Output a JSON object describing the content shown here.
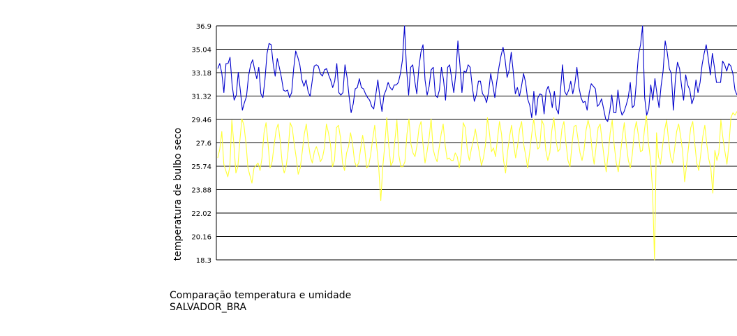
{
  "caption": {
    "line1": "Comparação temperatura e umidade",
    "line2": "SALVADOR_BRA"
  },
  "chart_data": {
    "type": "line",
    "title": "",
    "ylabel": "temperatura de bulbo seco",
    "xlabel": "",
    "ylim": [
      18.3,
      36.9
    ],
    "yticks": [
      "36.9",
      "35.04",
      "33.18",
      "31.32",
      "29.46",
      "27.6",
      "25.74",
      "23.88",
      "22.02",
      "20.16",
      "18.3"
    ],
    "grid": true,
    "legend": "none",
    "colors": {
      "series_blue": "#0000cc",
      "series_yellow": "#ffff33",
      "grid": "#000000"
    },
    "series": [
      {
        "values": [
          33.5,
          33.9,
          33.1,
          31.6,
          33.9,
          33.9,
          34.4,
          32.2,
          31.0,
          31.4,
          33.2,
          31.8,
          30.2,
          30.8,
          31.3,
          32.9,
          33.8,
          34.2,
          33.4,
          32.7,
          33.6,
          31.5,
          31.2,
          32.6,
          34.7,
          35.5,
          35.4,
          33.9,
          32.9,
          34.3,
          33.6,
          32.8,
          31.8,
          31.7,
          31.8,
          31.2,
          31.6,
          33.5,
          34.9,
          34.4,
          33.8,
          32.6,
          32.1,
          32.6,
          31.7,
          31.3,
          32.5,
          33.7,
          33.8,
          33.7,
          33.1,
          32.9,
          33.4,
          33.5,
          33.0,
          32.6,
          32.0,
          32.5,
          33.9,
          31.6,
          31.4,
          31.6,
          33.8,
          32.8,
          31.3,
          30.0,
          30.7,
          31.9,
          32.0,
          32.7,
          32.0,
          31.9,
          31.5,
          31.2,
          31.0,
          30.5,
          30.3,
          31.4,
          32.6,
          31.2,
          30.1,
          31.4,
          31.8,
          32.4,
          32.0,
          31.8,
          32.2,
          32.2,
          32.4,
          33.1,
          34.2,
          36.9,
          33.5,
          31.4,
          33.6,
          33.8,
          32.5,
          31.5,
          33.6,
          34.8,
          35.4,
          32.6,
          31.4,
          32.1,
          33.4,
          33.6,
          31.4,
          31.2,
          31.8,
          33.6,
          32.6,
          31.0,
          33.6,
          33.8,
          32.7,
          31.6,
          33.1,
          35.7,
          33.8,
          31.6,
          33.3,
          33.2,
          33.8,
          33.6,
          32.1,
          30.9,
          31.4,
          32.5,
          32.5,
          31.5,
          31.3,
          30.8,
          31.7,
          33.1,
          32.2,
          31.2,
          32.5,
          33.6,
          34.5,
          35.2,
          34.2,
          32.8,
          33.4,
          34.8,
          33.2,
          31.5,
          32.0,
          31.3,
          32.1,
          33.1,
          32.4,
          31.1,
          30.6,
          29.6,
          31.7,
          29.8,
          31.2,
          31.5,
          31.4,
          29.9,
          31.7,
          32.1,
          31.5,
          30.4,
          31.7,
          30.3,
          29.9,
          31.8,
          33.8,
          31.7,
          31.4,
          31.8,
          32.5,
          31.5,
          32.3,
          33.6,
          32.0,
          31.2,
          30.8,
          30.9,
          30.2,
          31.6,
          32.3,
          32.1,
          31.9,
          30.5,
          30.7,
          31.1,
          30.3,
          29.5,
          29.3,
          30.1,
          31.4,
          30.0,
          30.0,
          31.8,
          30.4,
          29.8,
          30.1,
          30.6,
          31.2,
          32.4,
          30.4,
          30.6,
          32.5,
          34.6,
          35.4,
          36.9,
          31.2,
          29.8,
          30.3,
          32.2,
          31.0,
          32.7,
          31.5,
          30.4,
          32.1,
          33.3,
          35.7,
          34.8,
          33.5,
          33.1,
          30.2,
          32.7,
          34.0,
          33.5,
          32.1,
          31.0,
          33.0,
          32.2,
          31.8,
          30.7,
          31.2,
          32.6,
          31.6,
          32.4,
          33.8,
          34.7,
          35.4,
          34.3,
          33.0,
          34.7,
          33.6,
          32.4,
          32.4,
          32.4,
          34.1,
          33.8,
          33.3,
          33.9,
          33.7,
          33.1,
          31.8,
          31.4
        ],
        "color": "#0000cc"
      },
      {
        "values": [
          26.4,
          27.1,
          28.5,
          25.9,
          25.4,
          24.9,
          25.7,
          29.4,
          27.5,
          25.2,
          25.7,
          27.8,
          29.5,
          29.0,
          27.6,
          25.6,
          25.0,
          24.4,
          25.6,
          25.8,
          26.0,
          25.4,
          26.4,
          28.4,
          29.2,
          27.5,
          25.6,
          26.1,
          27.4,
          28.6,
          29.1,
          27.8,
          26.0,
          25.2,
          25.7,
          27.0,
          29.2,
          28.8,
          27.5,
          26.4,
          25.1,
          25.6,
          26.9,
          28.3,
          29.1,
          27.6,
          26.5,
          26.0,
          26.9,
          27.3,
          26.8,
          26.1,
          26.4,
          27.2,
          29.1,
          28.4,
          27.5,
          25.7,
          26.2,
          28.8,
          29.0,
          28.0,
          26.0,
          25.4,
          26.8,
          27.3,
          28.4,
          27.5,
          26.1,
          25.7,
          26.0,
          27.1,
          28.2,
          27.2,
          25.6,
          25.8,
          26.7,
          27.9,
          29.0,
          27.3,
          25.6,
          23.0,
          25.7,
          27.4,
          29.6,
          27.3,
          25.8,
          26.1,
          27.8,
          29.4,
          26.6,
          25.7,
          25.7,
          26.1,
          28.3,
          29.5,
          27.5,
          26.8,
          26.5,
          27.4,
          28.8,
          29.3,
          27.5,
          26.0,
          26.9,
          28.0,
          29.5,
          27.1,
          26.5,
          26.1,
          27.2,
          28.3,
          29.1,
          27.4,
          26.3,
          26.4,
          26.2,
          26.2,
          26.8,
          26.5,
          25.6,
          26.7,
          29.2,
          28.8,
          27.0,
          26.2,
          27.1,
          27.8,
          28.7,
          27.7,
          26.8,
          25.8,
          26.4,
          27.4,
          29.6,
          28.4,
          26.9,
          27.2,
          26.5,
          27.9,
          29.3,
          28.3,
          26.2,
          25.2,
          26.9,
          28.1,
          29.0,
          27.5,
          26.4,
          27.4,
          28.7,
          29.3,
          27.5,
          26.6,
          25.6,
          26.9,
          28.3,
          29.5,
          28.2,
          27.1,
          27.3,
          29.4,
          29.0,
          27.0,
          26.2,
          26.8,
          28.6,
          29.6,
          27.9,
          26.9,
          27.1,
          28.7,
          29.3,
          27.6,
          26.2,
          25.7,
          27.4,
          28.9,
          29.0,
          27.9,
          26.8,
          26.2,
          27.0,
          28.6,
          29.4,
          28.7,
          27.0,
          25.9,
          27.3,
          28.8,
          29.1,
          27.7,
          26.4,
          25.3,
          26.7,
          28.4,
          29.4,
          27.4,
          26.0,
          25.3,
          26.6,
          28.0,
          29.2,
          27.5,
          26.2,
          25.6,
          26.7,
          28.5,
          29.3,
          28.2,
          26.9,
          27.0,
          28.6,
          29.8,
          27.6,
          26.3,
          24.0,
          18.3,
          28.4,
          26.5,
          25.9,
          27.3,
          28.6,
          29.4,
          27.8,
          26.5,
          26.0,
          27.1,
          28.5,
          29.1,
          28.1,
          26.9,
          24.5,
          25.9,
          27.4,
          28.8,
          29.3,
          27.6,
          26.0,
          25.4,
          26.7,
          28.1,
          29.0,
          27.5,
          26.3,
          25.6,
          23.6,
          27.0,
          26.2,
          26.8,
          29.4,
          28.0,
          26.9,
          25.9,
          27.5,
          29.6,
          30.0,
          29.8,
          30.1
        ],
        "color": "#ffff33"
      }
    ]
  }
}
